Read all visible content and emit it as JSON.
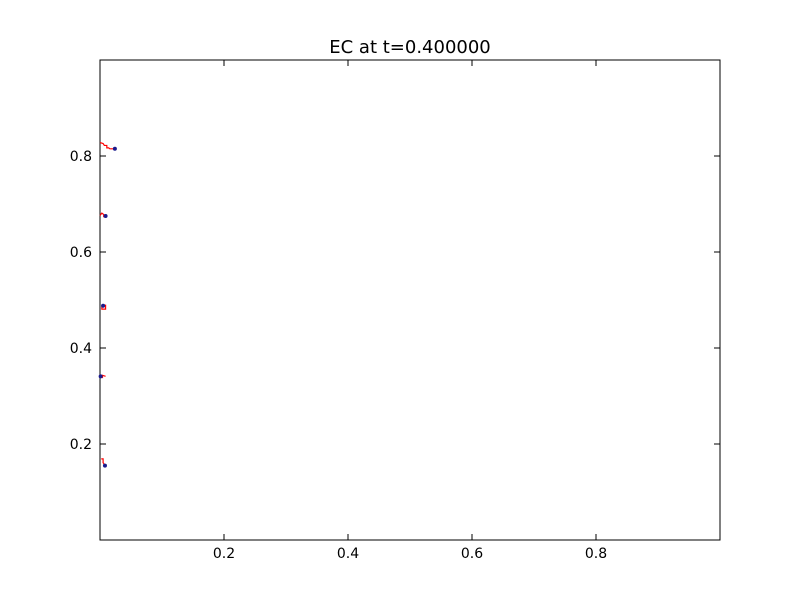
{
  "chart_data": {
    "type": "line",
    "title": "EC at t=0.400000",
    "xlabel": "",
    "ylabel": "",
    "xlim": [
      0,
      1
    ],
    "ylim": [
      0,
      1
    ],
    "x_ticks": [
      0.2,
      0.4,
      0.6,
      0.8
    ],
    "y_ticks": [
      0.2,
      0.4,
      0.6,
      0.8
    ],
    "x_tick_labels": [
      "0.2",
      "0.4",
      "0.6",
      "0.8"
    ],
    "y_tick_labels": [
      "0.2",
      "0.4",
      "0.6",
      "0.8"
    ],
    "grid": false,
    "colors": {
      "path": "#ff0000",
      "marker": "#1a1a8c"
    },
    "series": [
      {
        "points": [
          [
            0.0,
            0.828
          ],
          [
            0.005,
            0.826
          ],
          [
            0.007,
            0.822
          ],
          [
            0.011,
            0.822
          ],
          [
            0.011,
            0.817
          ],
          [
            0.014,
            0.817
          ],
          [
            0.016,
            0.815
          ],
          [
            0.024,
            0.815
          ]
        ],
        "marker": [
          0.024,
          0.815
        ]
      },
      {
        "points": [
          [
            0.0,
            0.676
          ],
          [
            0.003,
            0.681
          ],
          [
            0.006,
            0.678
          ],
          [
            0.006,
            0.674
          ],
          [
            0.009,
            0.676
          ]
        ],
        "marker": [
          0.009,
          0.675
        ]
      },
      {
        "points": [
          [
            0.003,
            0.489
          ],
          [
            0.009,
            0.489
          ],
          [
            0.009,
            0.481
          ],
          [
            0.003,
            0.481
          ],
          [
            0.003,
            0.489
          ]
        ],
        "marker": [
          0.005,
          0.488
        ]
      },
      {
        "points": [
          [
            0.0,
            0.343
          ],
          [
            0.004,
            0.339
          ],
          [
            0.004,
            0.343
          ],
          [
            0.009,
            0.341
          ]
        ],
        "marker": [
          0.001,
          0.341
        ]
      },
      {
        "points": [
          [
            0.002,
            0.169
          ],
          [
            0.005,
            0.169
          ],
          [
            0.005,
            0.161
          ],
          [
            0.008,
            0.156
          ]
        ],
        "marker": [
          0.008,
          0.155
        ]
      }
    ]
  }
}
